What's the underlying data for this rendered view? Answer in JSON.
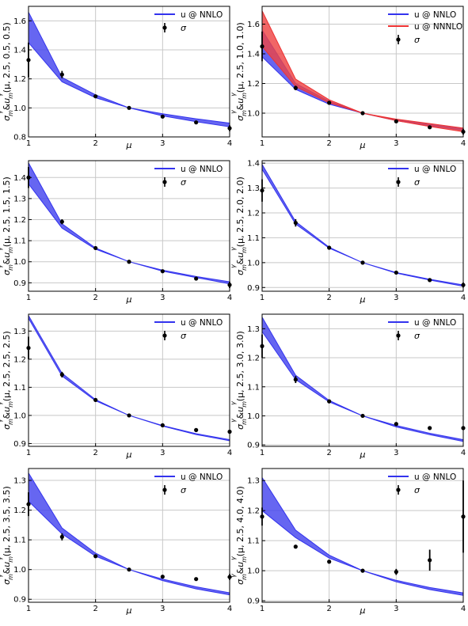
{
  "legend_labels": {
    "band_nnlo": "u @ NNLO",
    "band_nnnlo": "u @ NNNLO",
    "points": "σ"
  },
  "colors": {
    "nnlo": "#3333ee",
    "nnlo_fill": "#4444ee",
    "nnnlo": "#ee3333",
    "nnnlo_fill": "#ee4444",
    "points": "#000000",
    "grid": "#c8c8c8"
  },
  "chart_data": [
    {
      "type": "line",
      "xlabel": "μ",
      "ylabel": "σ_m^γ/σ_m^γ(μ, 2.5, 0.5, 0.5)",
      "xlim": [
        1,
        4
      ],
      "ylim": [
        0.8,
        1.7
      ],
      "xticks": [
        1,
        2,
        3,
        4
      ],
      "yticks": [
        0.8,
        1.0,
        1.2,
        1.4,
        1.6
      ],
      "ytick_labels": [
        "0.8",
        "1.0",
        "1.2",
        "1.4",
        "1.6"
      ],
      "grid": true,
      "legend_position": "top-right",
      "x": [
        1,
        1.5,
        2,
        2.5,
        3,
        3.5,
        4
      ],
      "series": [
        {
          "name": "u @ NNLO",
          "kind": "band",
          "color": "nnlo",
          "lower": [
            1.45,
            1.18,
            1.07,
            1.0,
            0.945,
            0.905,
            0.87
          ],
          "upper": [
            1.66,
            1.21,
            1.09,
            1.0,
            0.96,
            0.925,
            0.895
          ]
        }
      ],
      "points": {
        "name": "σ",
        "y": [
          1.33,
          1.23,
          1.08,
          1.0,
          0.94,
          0.9,
          0.86
        ],
        "err": [
          0.12,
          0.025,
          0.0,
          0.0,
          0.0,
          0.0,
          0.02
        ]
      }
    },
    {
      "type": "line",
      "xlabel": "μ",
      "ylabel": "σ_m^γ/σ_m^γ(μ, 2.5, 1.0, 1.0)",
      "xlim": [
        1,
        4
      ],
      "ylim": [
        0.84,
        1.72
      ],
      "xticks": [
        1,
        2,
        3,
        4
      ],
      "yticks": [
        1.0,
        1.2,
        1.4,
        1.6
      ],
      "ytick_labels": [
        "1.0",
        "1.2",
        "1.4",
        "1.6"
      ],
      "grid": true,
      "legend_position": "top-right",
      "x": [
        1,
        1.5,
        2,
        2.5,
        3,
        3.5,
        4
      ],
      "series": [
        {
          "name": "u @ NNLO",
          "kind": "band",
          "color": "nnlo",
          "lower": [
            1.38,
            1.16,
            1.06,
            1.0,
            0.95,
            0.915,
            0.885
          ],
          "upper": [
            1.56,
            1.2,
            1.08,
            1.0,
            0.955,
            0.925,
            0.895
          ]
        },
        {
          "name": "u @ NNNLO",
          "kind": "band",
          "color": "nnnlo",
          "lower": [
            1.45,
            1.18,
            1.07,
            1.0,
            0.95,
            0.91,
            0.875
          ],
          "upper": [
            1.69,
            1.23,
            1.09,
            1.0,
            0.96,
            0.93,
            0.9
          ]
        }
      ],
      "points": {
        "name": "σ",
        "y": [
          1.45,
          1.17,
          1.07,
          1.0,
          0.945,
          0.905,
          0.875
        ],
        "err": [
          0.1,
          0.015,
          0.0,
          0.0,
          0.0,
          0.0,
          0.02
        ]
      }
    },
    {
      "type": "line",
      "xlabel": "μ",
      "ylabel": "σ_m^γ/σ_m^γ(μ, 2.5, 1.5, 1.5)",
      "xlim": [
        1,
        4
      ],
      "ylim": [
        0.86,
        1.48
      ],
      "xticks": [
        1,
        2,
        3,
        4
      ],
      "yticks": [
        0.9,
        1.0,
        1.1,
        1.2,
        1.3,
        1.4
      ],
      "ytick_labels": [
        "0.9",
        "1.0",
        "1.1",
        "1.2",
        "1.3",
        "1.4"
      ],
      "grid": true,
      "legend_position": "top-right",
      "x": [
        1,
        1.5,
        2,
        2.5,
        3,
        3.5,
        4
      ],
      "series": [
        {
          "name": "u @ NNLO",
          "kind": "band",
          "color": "nnlo",
          "lower": [
            1.37,
            1.16,
            1.06,
            1.0,
            0.955,
            0.925,
            0.895
          ],
          "upper": [
            1.47,
            1.18,
            1.065,
            1.0,
            0.96,
            0.93,
            0.905
          ]
        }
      ],
      "points": {
        "name": "σ",
        "y": [
          1.4,
          1.19,
          1.065,
          1.0,
          0.955,
          0.92,
          0.89
        ],
        "err": [
          0.05,
          0.012,
          0.0,
          0.0,
          0.0,
          0.0,
          0.015
        ]
      }
    },
    {
      "type": "line",
      "xlabel": "μ",
      "ylabel": "σ_m^γ/σ_m^γ(μ, 2.5, 2.0, 2.0)",
      "xlim": [
        1,
        4
      ],
      "ylim": [
        0.885,
        1.41
      ],
      "xticks": [
        1,
        2,
        3,
        4
      ],
      "yticks": [
        0.9,
        1.0,
        1.1,
        1.2,
        1.3,
        1.4
      ],
      "ytick_labels": [
        "0.9",
        "1.0",
        "1.1",
        "1.2",
        "1.3",
        "1.4"
      ],
      "grid": true,
      "legend_position": "top-right",
      "x": [
        1,
        1.5,
        2,
        2.5,
        3,
        3.5,
        4
      ],
      "series": [
        {
          "name": "u @ NNLO",
          "kind": "band",
          "color": "nnlo",
          "lower": [
            1.375,
            1.155,
            1.058,
            1.0,
            0.958,
            0.93,
            0.905
          ],
          "upper": [
            1.395,
            1.165,
            1.062,
            1.0,
            0.96,
            0.933,
            0.91
          ]
        }
      ],
      "points": {
        "name": "σ",
        "y": [
          1.29,
          1.16,
          1.06,
          1.0,
          0.96,
          0.93,
          0.91
        ],
        "err": [
          0.045,
          0.015,
          0.0,
          0.0,
          0.0,
          0.0,
          0.01
        ]
      }
    },
    {
      "type": "line",
      "xlabel": "μ",
      "ylabel": "σ_m^γ/σ_m^γ(μ, 2.5, 2.5, 2.5)",
      "xlim": [
        1,
        4
      ],
      "ylim": [
        0.89,
        1.36
      ],
      "xticks": [
        1,
        2,
        3,
        4
      ],
      "yticks": [
        0.9,
        1.0,
        1.1,
        1.2,
        1.3
      ],
      "ytick_labels": [
        "0.9",
        "1.0",
        "1.1",
        "1.2",
        "1.3"
      ],
      "grid": true,
      "legend_position": "top-right",
      "x": [
        1,
        1.5,
        2,
        2.5,
        3,
        3.5,
        4
      ],
      "series": [
        {
          "name": "u @ NNLO",
          "kind": "band",
          "color": "nnlo",
          "lower": [
            1.345,
            1.14,
            1.052,
            1.0,
            0.962,
            0.932,
            0.91
          ],
          "upper": [
            1.355,
            1.15,
            1.056,
            1.0,
            0.964,
            0.935,
            0.914
          ]
        }
      ],
      "points": {
        "name": "σ",
        "y": [
          1.24,
          1.145,
          1.055,
          1.0,
          0.965,
          0.948,
          0.942
        ],
        "err": [
          0.04,
          0.01,
          0.0,
          0.0,
          0.0,
          0.0,
          0.0
        ]
      }
    },
    {
      "type": "line",
      "xlabel": "μ",
      "ylabel": "σ_m^γ/σ_m^γ(μ, 2.5, 3.0, 3.0)",
      "xlim": [
        1,
        4
      ],
      "ylim": [
        0.895,
        1.35
      ],
      "xticks": [
        1,
        2,
        3,
        4
      ],
      "yticks": [
        0.9,
        1.0,
        1.1,
        1.2,
        1.3
      ],
      "ytick_labels": [
        "0.9",
        "1.0",
        "1.1",
        "1.2",
        "1.3"
      ],
      "grid": true,
      "legend_position": "top-right",
      "x": [
        1,
        1.5,
        2,
        2.5,
        3,
        3.5,
        4
      ],
      "series": [
        {
          "name": "u @ NNLO",
          "kind": "band",
          "color": "nnlo",
          "lower": [
            1.29,
            1.125,
            1.048,
            1.0,
            0.962,
            0.935,
            0.912
          ],
          "upper": [
            1.34,
            1.14,
            1.053,
            1.0,
            0.967,
            0.94,
            0.918
          ]
        }
      ],
      "points": {
        "name": "σ",
        "y": [
          1.24,
          1.125,
          1.05,
          1.0,
          0.972,
          0.958,
          0.958
        ],
        "err": [
          0.04,
          0.012,
          0.0,
          0.0,
          0.0,
          0.0,
          0.0
        ]
      }
    },
    {
      "type": "line",
      "xlabel": "μ",
      "ylabel": "σ_m^γ/σ_m^γ(μ, 2.5, 3.5, 3.5)",
      "xlim": [
        1,
        4
      ],
      "ylim": [
        0.89,
        1.34
      ],
      "xticks": [
        1,
        2,
        3,
        4
      ],
      "yticks": [
        0.9,
        1.0,
        1.1,
        1.2,
        1.3
      ],
      "ytick_labels": [
        "0.9",
        "1.0",
        "1.1",
        "1.2",
        "1.3"
      ],
      "grid": true,
      "legend_position": "top-right",
      "x": [
        1,
        1.5,
        2,
        2.5,
        3,
        3.5,
        4
      ],
      "series": [
        {
          "name": "u @ NNLO",
          "kind": "band",
          "color": "nnlo",
          "lower": [
            1.23,
            1.12,
            1.045,
            1.0,
            0.963,
            0.935,
            0.915
          ],
          "upper": [
            1.325,
            1.14,
            1.055,
            1.0,
            0.968,
            0.942,
            0.922
          ]
        }
      ],
      "points": {
        "name": "σ",
        "y": [
          1.22,
          1.11,
          1.045,
          1.0,
          0.976,
          0.968,
          0.975
        ],
        "err": [
          0.04,
          0.012,
          0.0,
          0.0,
          0.0,
          0.0,
          0.01
        ]
      }
    },
    {
      "type": "line",
      "xlabel": "μ",
      "ylabel": "σ_m^γ/σ_m^γ(μ, 2.5, 4.0, 4.0)",
      "xlim": [
        1,
        4
      ],
      "ylim": [
        0.895,
        1.34
      ],
      "xticks": [
        1,
        2,
        3,
        4
      ],
      "yticks": [
        0.9,
        1.0,
        1.1,
        1.2,
        1.3
      ],
      "ytick_labels": [
        "0.9",
        "1.0",
        "1.1",
        "1.2",
        "1.3"
      ],
      "grid": true,
      "legend_position": "top-right",
      "x": [
        1,
        1.5,
        2,
        2.5,
        3,
        3.5,
        4
      ],
      "series": [
        {
          "name": "u @ NNLO",
          "kind": "band",
          "color": "nnlo",
          "lower": [
            1.2,
            1.11,
            1.042,
            1.0,
            0.963,
            0.937,
            0.918
          ],
          "upper": [
            1.31,
            1.135,
            1.052,
            1.0,
            0.968,
            0.944,
            0.926
          ]
        }
      ],
      "points": {
        "name": "σ",
        "y": [
          1.18,
          1.08,
          1.03,
          1.0,
          0.996,
          1.035,
          1.18
        ],
        "err": [
          0.03,
          0.0,
          0.0,
          0.0,
          0.01,
          0.035,
          0.12
        ]
      }
    }
  ]
}
